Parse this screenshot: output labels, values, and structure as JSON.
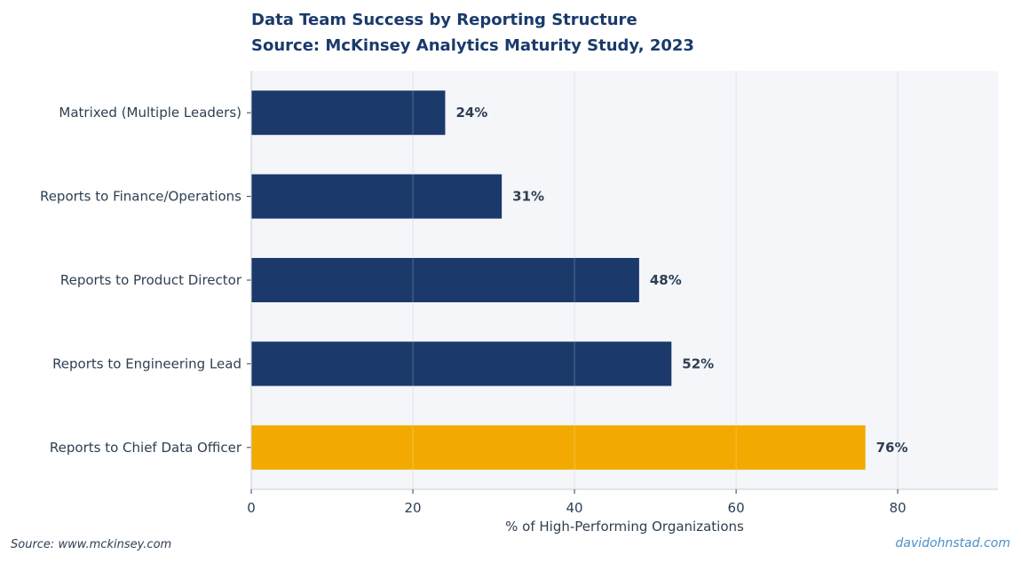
{
  "chart_data": {
    "type": "bar",
    "orientation": "horizontal",
    "title": "Data Team Success by Reporting Structure",
    "subtitle": "Source: McKinsey Analytics Maturity Study, 2023",
    "xlabel": "% of High-Performing Organizations",
    "ylabel": "",
    "xlim": [
      0,
      92.4
    ],
    "xticks": [
      0,
      20,
      40,
      60,
      80
    ],
    "grid": true,
    "categories": [
      "Matrixed (Multiple Leaders)",
      "Reports to Finance/Operations",
      "Reports to Product Director",
      "Reports to Engineering Lead",
      "Reports to Chief Data Officer"
    ],
    "values": [
      24,
      31,
      48,
      52,
      76
    ],
    "value_labels": [
      "24%",
      "31%",
      "48%",
      "52%",
      "76%"
    ],
    "highlight_category": "Reports to Chief Data Officer",
    "colors": {
      "bar": "#1b3a6b",
      "highlight": "#f2aa00",
      "plot_bg": "#f4f6fa",
      "grid": "#d9dde5",
      "text": "#2e3f52"
    }
  },
  "footer": {
    "source": "Source: www.mckinsey.com",
    "credit": "davidohnstad.com"
  }
}
